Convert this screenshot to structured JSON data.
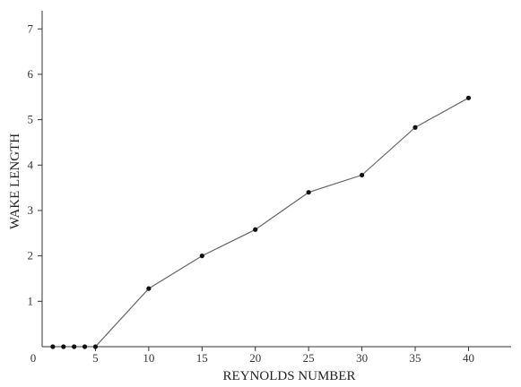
{
  "chart_data": {
    "type": "line",
    "xlabel": "REYNOLDS NUMBER",
    "ylabel": "WAKE   LENGTH",
    "xlim": [
      0,
      44
    ],
    "ylim": [
      0,
      7.4
    ],
    "xticks": [
      0,
      5,
      10,
      15,
      20,
      25,
      30,
      35,
      40
    ],
    "xtick_labels": [
      "0",
      "5",
      "10",
      "15",
      "20",
      "25",
      "30",
      "35",
      "40"
    ],
    "yticks": [
      1,
      2,
      3,
      4,
      5,
      6,
      7
    ],
    "ytick_labels": [
      "1",
      "2",
      "3",
      "4",
      "5",
      "6",
      "7"
    ],
    "grid": false,
    "series": [
      {
        "x": [
          1,
          2,
          3,
          4,
          5,
          10,
          15,
          20,
          25,
          30,
          35,
          40
        ],
        "y": [
          0,
          0,
          0,
          0,
          0,
          1.28,
          2.0,
          2.58,
          3.4,
          3.78,
          4.83,
          5.48
        ],
        "color": "#666666",
        "marker_color": "#111111"
      }
    ]
  }
}
